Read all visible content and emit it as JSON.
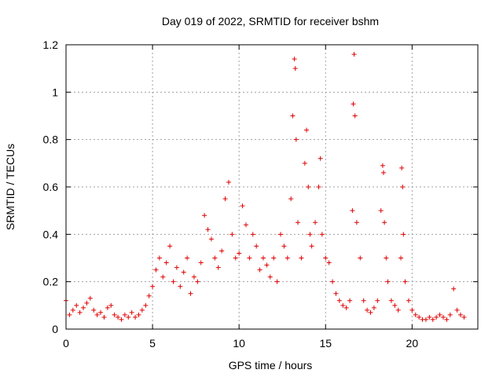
{
  "chart_data": {
    "type": "scatter",
    "title": "Day 019 of 2022, SRMTID for receiver bshm",
    "xlabel": "GPS time / hours",
    "ylabel": "SRMTID / TECUs",
    "xlim": [
      0,
      23.8
    ],
    "ylim": [
      0,
      1.2
    ],
    "xticks": [
      0,
      5,
      10,
      15,
      20
    ],
    "yticks": [
      0,
      0.2,
      0.4,
      0.6,
      0.8,
      1,
      1.2
    ],
    "grid": true,
    "marker": "+",
    "color": "#e00000",
    "series": [
      {
        "name": "SRMTID",
        "x": [
          0.0,
          0.2,
          0.4,
          0.6,
          0.8,
          1.0,
          1.2,
          1.4,
          1.6,
          1.8,
          2.0,
          2.2,
          2.4,
          2.6,
          2.8,
          3.0,
          3.2,
          3.4,
          3.6,
          3.8,
          4.0,
          4.2,
          4.4,
          4.6,
          4.8,
          5.0,
          5.2,
          5.4,
          5.6,
          5.8,
          6.0,
          6.2,
          6.4,
          6.6,
          6.8,
          7.0,
          7.2,
          7.4,
          7.6,
          7.8,
          8.0,
          8.2,
          8.4,
          8.6,
          8.8,
          9.0,
          9.2,
          9.4,
          9.6,
          9.8,
          10.0,
          10.2,
          10.4,
          10.6,
          10.8,
          11.0,
          11.2,
          11.4,
          11.6,
          11.8,
          12.0,
          12.2,
          12.4,
          12.6,
          12.8,
          13.0,
          13.1,
          13.2,
          13.25,
          13.3,
          13.4,
          13.6,
          13.8,
          13.9,
          14.0,
          14.1,
          14.2,
          14.4,
          14.6,
          14.7,
          14.8,
          15.0,
          15.2,
          15.4,
          15.6,
          15.8,
          16.0,
          16.2,
          16.4,
          16.55,
          16.6,
          16.65,
          16.7,
          16.8,
          17.0,
          17.2,
          17.4,
          17.6,
          17.8,
          18.0,
          18.2,
          18.3,
          18.35,
          18.4,
          18.5,
          18.6,
          18.8,
          19.0,
          19.2,
          19.35,
          19.4,
          19.45,
          19.5,
          19.6,
          19.8,
          20.0,
          20.2,
          20.4,
          20.6,
          20.8,
          21.0,
          21.2,
          21.4,
          21.6,
          21.8,
          22.0,
          22.2,
          22.4,
          22.6,
          22.8,
          23.0
        ],
        "values": [
          0.12,
          0.06,
          0.08,
          0.1,
          0.07,
          0.09,
          0.11,
          0.13,
          0.08,
          0.06,
          0.07,
          0.05,
          0.09,
          0.1,
          0.06,
          0.05,
          0.04,
          0.06,
          0.05,
          0.07,
          0.05,
          0.06,
          0.08,
          0.1,
          0.14,
          0.18,
          0.25,
          0.3,
          0.22,
          0.28,
          0.35,
          0.2,
          0.26,
          0.18,
          0.24,
          0.3,
          0.15,
          0.22,
          0.2,
          0.28,
          0.48,
          0.42,
          0.38,
          0.3,
          0.26,
          0.33,
          0.55,
          0.62,
          0.4,
          0.3,
          0.32,
          0.52,
          0.44,
          0.3,
          0.4,
          0.35,
          0.25,
          0.3,
          0.27,
          0.22,
          0.3,
          0.2,
          0.4,
          0.35,
          0.3,
          0.55,
          0.9,
          1.14,
          1.1,
          0.8,
          0.45,
          0.3,
          0.7,
          0.84,
          0.6,
          0.4,
          0.35,
          0.45,
          0.6,
          0.72,
          0.4,
          0.3,
          0.28,
          0.2,
          0.15,
          0.12,
          0.1,
          0.09,
          0.12,
          0.5,
          0.95,
          1.16,
          0.9,
          0.45,
          0.3,
          0.12,
          0.08,
          0.07,
          0.09,
          0.12,
          0.5,
          0.69,
          0.66,
          0.45,
          0.3,
          0.2,
          0.12,
          0.1,
          0.08,
          0.3,
          0.68,
          0.6,
          0.4,
          0.2,
          0.12,
          0.08,
          0.06,
          0.05,
          0.04,
          0.04,
          0.05,
          0.04,
          0.05,
          0.06,
          0.05,
          0.04,
          0.06,
          0.17,
          0.08,
          0.06,
          0.05
        ]
      }
    ]
  }
}
